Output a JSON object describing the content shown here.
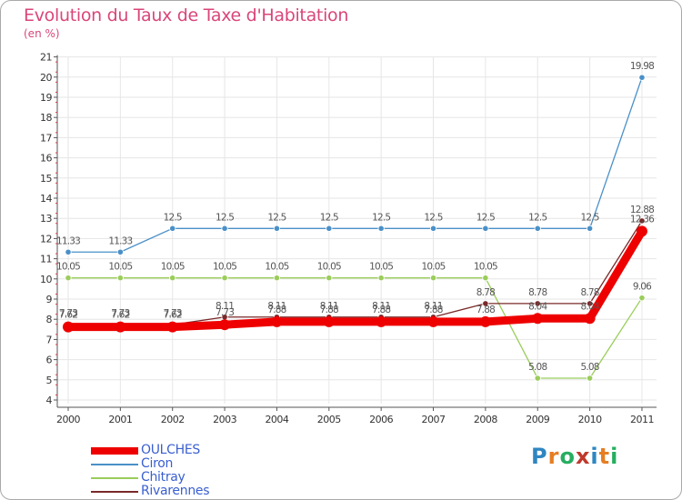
{
  "title": "Evolution du Taux de Taxe d'Habitation",
  "unit_label": "(en %)",
  "logo": {
    "text": "Proxiti",
    "letters": [
      "P",
      "r",
      "o",
      "x",
      "i",
      "t",
      "i"
    ],
    "colors": [
      "#2e86c1",
      "#e67e22",
      "#27ae60",
      "#c0392b",
      "#2e86c1",
      "#e67e22",
      "#27ae60"
    ]
  },
  "chart_data": {
    "type": "line",
    "title": "Evolution du Taux de Taxe d'Habitation",
    "ylabel": "(en %)",
    "xlabel": "",
    "ylim": [
      4,
      21
    ],
    "yticks": [
      4,
      5,
      6,
      7,
      8,
      9,
      10,
      11,
      12,
      13,
      14,
      15,
      16,
      17,
      18,
      19,
      20,
      21
    ],
    "categories": [
      "2000",
      "2001",
      "2002",
      "2003",
      "2004",
      "2005",
      "2006",
      "2007",
      "2008",
      "2009",
      "2010",
      "2011"
    ],
    "series": [
      {
        "name": "Chitray",
        "color": "#9acd5a",
        "values": [
          10.05,
          10.05,
          10.05,
          10.05,
          10.05,
          10.05,
          10.05,
          10.05,
          10.05,
          5.08,
          5.08,
          9.06
        ],
        "labels": [
          "10.05",
          "10.05",
          "10.05",
          "10.05",
          "10.05",
          "10.05",
          "10.05",
          "10.05",
          "10.05",
          "5.08",
          "5.08",
          "9.06"
        ]
      },
      {
        "name": "Ciron",
        "color": "#4a90c8",
        "values": [
          11.33,
          11.33,
          12.5,
          12.5,
          12.5,
          12.5,
          12.5,
          12.5,
          12.5,
          12.5,
          12.5,
          19.98
        ],
        "labels": [
          "11.33",
          "11.33",
          "12.5",
          "12.5",
          "12.5",
          "12.5",
          "12.5",
          "12.5",
          "12.5",
          "12.5",
          "12.5",
          "19.98"
        ]
      },
      {
        "name": "Rivarennes",
        "color": "#7a2a2a",
        "values": [
          7.73,
          7.73,
          7.73,
          8.11,
          8.11,
          8.11,
          8.11,
          8.11,
          8.78,
          8.78,
          8.78,
          12.88
        ],
        "labels": [
          "7.73",
          "7.73",
          "7.73",
          "8.11",
          "8.11",
          "8.11",
          "8.11",
          "8.11",
          "8.78",
          "8.78",
          "8.78",
          "12.88"
        ]
      },
      {
        "name": "OULCHES",
        "color": "#ee0000",
        "values": [
          7.62,
          7.62,
          7.62,
          7.73,
          7.88,
          7.88,
          7.88,
          7.88,
          7.88,
          8.04,
          8.04,
          12.36
        ],
        "labels": [
          "7.62",
          "7.62",
          "7.62",
          "7.73",
          "7.88",
          "7.88",
          "7.88",
          "7.88",
          "7.88",
          "8.04",
          "8.04",
          "12.36"
        ]
      }
    ],
    "legend": {
      "placement": "bottom-left",
      "entries": [
        {
          "name": "OULCHES",
          "color": "#ee0000",
          "label_color": "#3a5fd0"
        },
        {
          "name": "Ciron",
          "color": "#4a90c8",
          "label_color": "#3a5fd0"
        },
        {
          "name": "Chitray",
          "color": "#9acd5a",
          "label_color": "#3a5fd0"
        },
        {
          "name": "Rivarennes",
          "color": "#7a2a2a",
          "label_color": "#3a5fd0"
        }
      ]
    }
  }
}
